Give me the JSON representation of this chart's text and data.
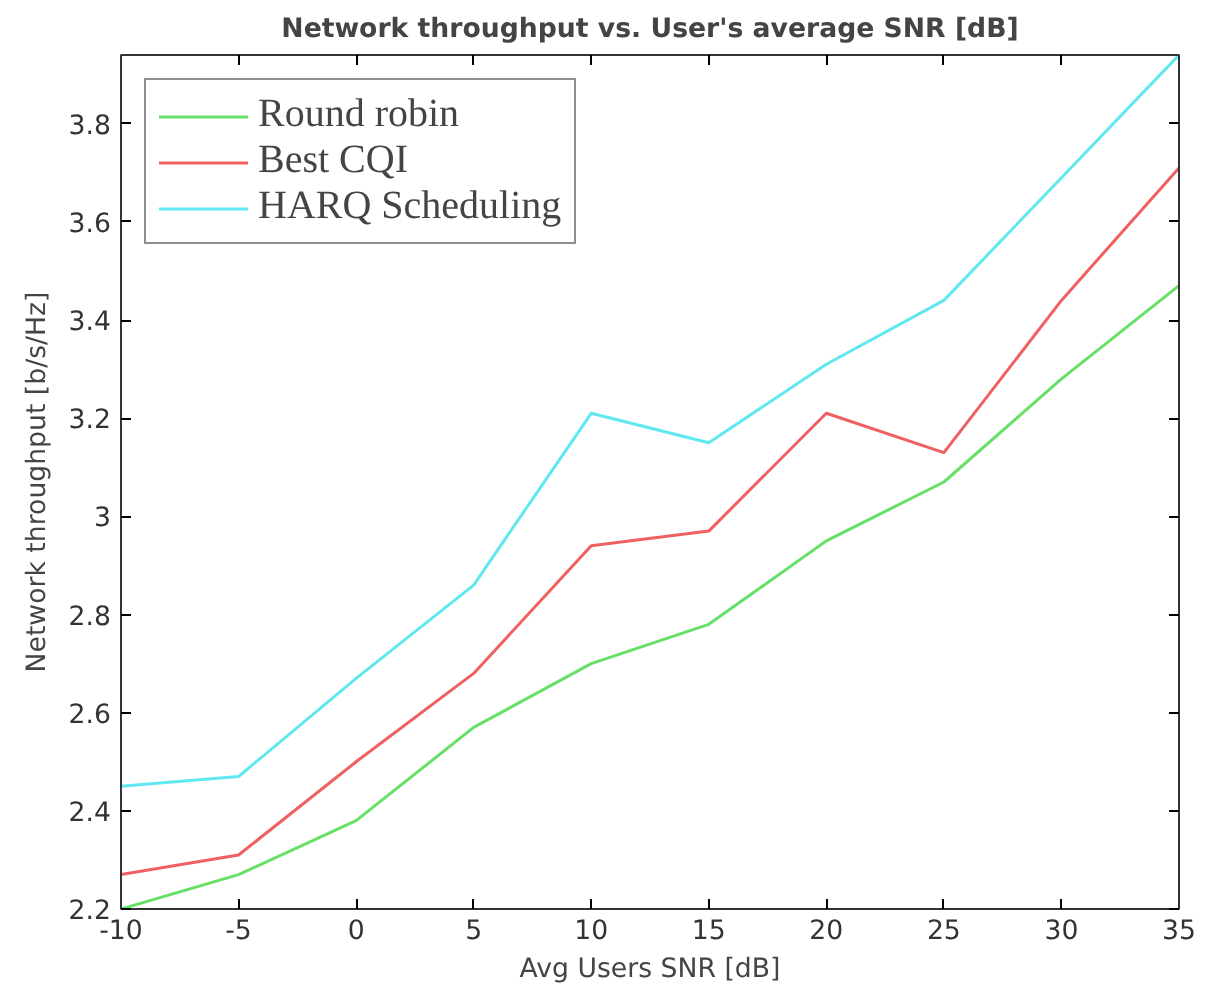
{
  "chart_data": {
    "type": "line",
    "title": "Network throughput vs. User's average SNR [dB]",
    "xlabel": "Avg Users SNR [dB]",
    "ylabel": "Network throughput [b/s/Hz]",
    "x": [
      -10,
      -5,
      0,
      5,
      10,
      15,
      20,
      25,
      30,
      35
    ],
    "series": [
      {
        "name": "Round robin",
        "color": "#66e066",
        "values": [
          2.2,
          2.27,
          2.38,
          2.57,
          2.7,
          2.78,
          2.95,
          3.07,
          3.28,
          3.47
        ]
      },
      {
        "name": "Best CQI",
        "color": "#f06060",
        "values": [
          2.27,
          2.31,
          2.5,
          2.68,
          2.94,
          2.97,
          3.21,
          3.13,
          3.44,
          3.71
        ]
      },
      {
        "name": "HARQ Scheduling",
        "color": "#60e8f0",
        "values": [
          2.45,
          2.47,
          2.67,
          2.86,
          3.21,
          3.15,
          3.31,
          3.44,
          3.69,
          3.94
        ]
      }
    ],
    "xlim": [
      -10,
      35
    ],
    "ylim": [
      2.2,
      3.94
    ],
    "xticks": [
      -10,
      -5,
      0,
      5,
      10,
      15,
      20,
      25,
      30,
      35
    ],
    "yticks": [
      2.2,
      2.4,
      2.6,
      {
        "value": 2.8,
        "label": "2.8"
      },
      3,
      3.2,
      3.4,
      3.6,
      3.8
    ],
    "grid": false,
    "legend": "top left",
    "marker": "none",
    "line_style": "solid"
  }
}
